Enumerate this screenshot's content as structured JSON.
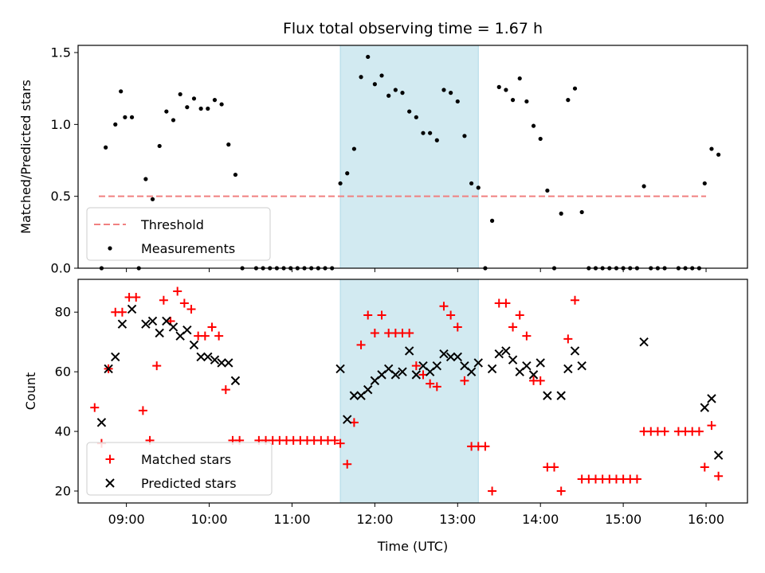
{
  "chart_data": {
    "type": "scatter",
    "title": "Flux total observing time = 1.67 h",
    "xlabel": "Time (UTC)",
    "x_ticks": [
      "09:00",
      "10:00",
      "11:00",
      "12:00",
      "13:00",
      "14:00",
      "15:00",
      "16:00"
    ],
    "x_range": [
      "08:25",
      "16:30"
    ],
    "shaded_interval": [
      "11:35",
      "13:15"
    ],
    "colors": {
      "threshold": "#f08080",
      "measurement": "#000000",
      "matched": "#ff0000",
      "predicted": "#000000",
      "shade": "#add8e6"
    },
    "panels": [
      {
        "id": "ratio",
        "ylabel": "Matched/Predicted stars",
        "ylim": [
          0,
          1.55
        ],
        "y_ticks": [
          0.0,
          0.5,
          1.0,
          1.5
        ],
        "y_tick_labels": [
          "0.0",
          "0.5",
          "1.0",
          "1.5"
        ],
        "legend": [
          "Threshold",
          "Measurements"
        ],
        "legend_position": "lower-left",
        "threshold": {
          "name": "Threshold",
          "y": 0.5,
          "x_start": "08:40",
          "x_end": "16:00"
        },
        "measurements": {
          "name": "Measurements",
          "points": [
            [
              "08:42",
              0.0
            ],
            [
              "08:45",
              0.84
            ],
            [
              "08:52",
              1.0
            ],
            [
              "08:56",
              1.23
            ],
            [
              "08:59",
              1.05
            ],
            [
              "09:04",
              1.05
            ],
            [
              "09:09",
              0.0
            ],
            [
              "09:14",
              0.62
            ],
            [
              "09:19",
              0.48
            ],
            [
              "09:24",
              0.85
            ],
            [
              "09:29",
              1.09
            ],
            [
              "09:34",
              1.03
            ],
            [
              "09:39",
              1.21
            ],
            [
              "09:44",
              1.12
            ],
            [
              "09:49",
              1.18
            ],
            [
              "09:54",
              1.11
            ],
            [
              "09:59",
              1.11
            ],
            [
              "10:04",
              1.17
            ],
            [
              "10:09",
              1.14
            ],
            [
              "10:14",
              0.86
            ],
            [
              "10:19",
              0.65
            ],
            [
              "10:24",
              0.0
            ],
            [
              "10:34",
              0.0
            ],
            [
              "10:39",
              0.0
            ],
            [
              "10:44",
              0.0
            ],
            [
              "10:49",
              0.0
            ],
            [
              "10:54",
              0.0
            ],
            [
              "10:59",
              0.0
            ],
            [
              "11:04",
              0.0
            ],
            [
              "11:09",
              0.0
            ],
            [
              "11:14",
              0.0
            ],
            [
              "11:19",
              0.0
            ],
            [
              "11:24",
              0.0
            ],
            [
              "11:29",
              0.0
            ],
            [
              "11:35",
              0.59
            ],
            [
              "11:40",
              0.66
            ],
            [
              "11:45",
              0.83
            ],
            [
              "11:50",
              1.33
            ],
            [
              "11:55",
              1.47
            ],
            [
              "12:00",
              1.28
            ],
            [
              "12:05",
              1.34
            ],
            [
              "12:10",
              1.2
            ],
            [
              "12:15",
              1.24
            ],
            [
              "12:20",
              1.22
            ],
            [
              "12:25",
              1.09
            ],
            [
              "12:30",
              1.05
            ],
            [
              "12:35",
              0.94
            ],
            [
              "12:40",
              0.94
            ],
            [
              "12:45",
              0.89
            ],
            [
              "12:50",
              1.24
            ],
            [
              "12:55",
              1.22
            ],
            [
              "13:00",
              1.16
            ],
            [
              "13:05",
              0.92
            ],
            [
              "13:10",
              0.59
            ],
            [
              "13:15",
              0.56
            ],
            [
              "13:20",
              0.0
            ],
            [
              "13:25",
              0.33
            ],
            [
              "13:30",
              1.26
            ],
            [
              "13:35",
              1.24
            ],
            [
              "13:40",
              1.17
            ],
            [
              "13:45",
              1.32
            ],
            [
              "13:50",
              1.16
            ],
            [
              "13:55",
              0.99
            ],
            [
              "14:00",
              0.9
            ],
            [
              "14:05",
              0.54
            ],
            [
              "14:10",
              0.0
            ],
            [
              "14:15",
              0.38
            ],
            [
              "14:20",
              1.17
            ],
            [
              "14:25",
              1.25
            ],
            [
              "14:30",
              0.39
            ],
            [
              "14:35",
              0.0
            ],
            [
              "14:40",
              0.0
            ],
            [
              "14:45",
              0.0
            ],
            [
              "14:50",
              0.0
            ],
            [
              "14:55",
              0.0
            ],
            [
              "15:00",
              0.0
            ],
            [
              "15:05",
              0.0
            ],
            [
              "15:10",
              0.0
            ],
            [
              "15:15",
              0.57
            ],
            [
              "15:20",
              0.0
            ],
            [
              "15:25",
              0.0
            ],
            [
              "15:30",
              0.0
            ],
            [
              "15:40",
              0.0
            ],
            [
              "15:45",
              0.0
            ],
            [
              "15:50",
              0.0
            ],
            [
              "15:55",
              0.0
            ],
            [
              "15:59",
              0.59
            ],
            [
              "16:04",
              0.83
            ],
            [
              "16:09",
              0.79
            ]
          ]
        }
      },
      {
        "id": "count",
        "ylabel": "Count",
        "ylim": [
          16,
          91
        ],
        "y_ticks": [
          20,
          40,
          60,
          80
        ],
        "y_tick_labels": [
          "20",
          "40",
          "60",
          "80"
        ],
        "legend": [
          "Matched stars",
          "Predicted stars"
        ],
        "legend_position": "lower-left",
        "matched": {
          "name": "Matched stars",
          "points": [
            [
              "08:37",
              48
            ],
            [
              "08:42",
              36
            ],
            [
              "08:47",
              61
            ],
            [
              "08:52",
              80
            ],
            [
              "08:57",
              80
            ],
            [
              "09:02",
              85
            ],
            [
              "09:07",
              85
            ],
            [
              "09:12",
              47
            ],
            [
              "09:17",
              37
            ],
            [
              "09:22",
              62
            ],
            [
              "09:27",
              84
            ],
            [
              "09:32",
              77
            ],
            [
              "09:37",
              87
            ],
            [
              "09:42",
              83
            ],
            [
              "09:47",
              81
            ],
            [
              "09:52",
              72
            ],
            [
              "09:57",
              72
            ],
            [
              "10:02",
              75
            ],
            [
              "10:07",
              72
            ],
            [
              "10:12",
              54
            ],
            [
              "10:17",
              37
            ],
            [
              "10:22",
              37
            ],
            [
              "10:36",
              37
            ],
            [
              "10:41",
              37
            ],
            [
              "10:46",
              37
            ],
            [
              "10:51",
              37
            ],
            [
              "10:56",
              37
            ],
            [
              "11:01",
              37
            ],
            [
              "11:06",
              37
            ],
            [
              "11:11",
              37
            ],
            [
              "11:16",
              37
            ],
            [
              "11:21",
              37
            ],
            [
              "11:26",
              37
            ],
            [
              "11:31",
              37
            ],
            [
              "11:35",
              36
            ],
            [
              "11:40",
              29
            ],
            [
              "11:45",
              43
            ],
            [
              "11:50",
              69
            ],
            [
              "11:55",
              79
            ],
            [
              "12:00",
              73
            ],
            [
              "12:05",
              79
            ],
            [
              "12:10",
              73
            ],
            [
              "12:15",
              73
            ],
            [
              "12:20",
              73
            ],
            [
              "12:25",
              73
            ],
            [
              "12:30",
              62
            ],
            [
              "12:35",
              59
            ],
            [
              "12:40",
              56
            ],
            [
              "12:45",
              55
            ],
            [
              "12:50",
              82
            ],
            [
              "12:55",
              79
            ],
            [
              "13:00",
              75
            ],
            [
              "13:05",
              57
            ],
            [
              "13:10",
              35
            ],
            [
              "13:15",
              35
            ],
            [
              "13:20",
              35
            ],
            [
              "13:25",
              20
            ],
            [
              "13:30",
              83
            ],
            [
              "13:35",
              83
            ],
            [
              "13:40",
              75
            ],
            [
              "13:45",
              79
            ],
            [
              "13:50",
              72
            ],
            [
              "13:55",
              57
            ],
            [
              "14:00",
              57
            ],
            [
              "14:05",
              28
            ],
            [
              "14:10",
              28
            ],
            [
              "14:15",
              20
            ],
            [
              "14:20",
              71
            ],
            [
              "14:25",
              84
            ],
            [
              "14:30",
              24
            ],
            [
              "14:35",
              24
            ],
            [
              "14:40",
              24
            ],
            [
              "14:45",
              24
            ],
            [
              "14:50",
              24
            ],
            [
              "14:55",
              24
            ],
            [
              "15:00",
              24
            ],
            [
              "15:05",
              24
            ],
            [
              "15:10",
              24
            ],
            [
              "15:15",
              40
            ],
            [
              "15:20",
              40
            ],
            [
              "15:25",
              40
            ],
            [
              "15:30",
              40
            ],
            [
              "15:40",
              40
            ],
            [
              "15:45",
              40
            ],
            [
              "15:50",
              40
            ],
            [
              "15:55",
              40
            ],
            [
              "15:59",
              28
            ],
            [
              "16:04",
              42
            ],
            [
              "16:09",
              25
            ]
          ]
        },
        "predicted": {
          "name": "Predicted stars",
          "points": [
            [
              "08:42",
              43
            ],
            [
              "08:47",
              61
            ],
            [
              "08:52",
              65
            ],
            [
              "08:57",
              76
            ],
            [
              "09:04",
              81
            ],
            [
              "09:14",
              76
            ],
            [
              "09:19",
              77
            ],
            [
              "09:24",
              73
            ],
            [
              "09:29",
              77
            ],
            [
              "09:34",
              75
            ],
            [
              "09:39",
              72
            ],
            [
              "09:44",
              74
            ],
            [
              "09:49",
              69
            ],
            [
              "09:54",
              65
            ],
            [
              "09:59",
              65
            ],
            [
              "10:04",
              64
            ],
            [
              "10:09",
              63
            ],
            [
              "10:14",
              63
            ],
            [
              "10:19",
              57
            ],
            [
              "11:35",
              61
            ],
            [
              "11:40",
              44
            ],
            [
              "11:45",
              52
            ],
            [
              "11:50",
              52
            ],
            [
              "11:55",
              54
            ],
            [
              "12:00",
              57
            ],
            [
              "12:05",
              59
            ],
            [
              "12:10",
              61
            ],
            [
              "12:15",
              59
            ],
            [
              "12:20",
              60
            ],
            [
              "12:25",
              67
            ],
            [
              "12:30",
              59
            ],
            [
              "12:35",
              62
            ],
            [
              "12:40",
              60
            ],
            [
              "12:45",
              62
            ],
            [
              "12:50",
              66
            ],
            [
              "12:55",
              65
            ],
            [
              "13:00",
              65
            ],
            [
              "13:05",
              62
            ],
            [
              "13:10",
              60
            ],
            [
              "13:15",
              63
            ],
            [
              "13:25",
              61
            ],
            [
              "13:30",
              66
            ],
            [
              "13:35",
              67
            ],
            [
              "13:40",
              64
            ],
            [
              "13:45",
              60
            ],
            [
              "13:50",
              62
            ],
            [
              "13:55",
              59
            ],
            [
              "14:00",
              63
            ],
            [
              "14:05",
              52
            ],
            [
              "14:15",
              52
            ],
            [
              "14:20",
              61
            ],
            [
              "14:25",
              67
            ],
            [
              "14:30",
              62
            ],
            [
              "15:15",
              70
            ],
            [
              "15:59",
              48
            ],
            [
              "16:04",
              51
            ],
            [
              "16:09",
              32
            ]
          ]
        }
      }
    ]
  }
}
